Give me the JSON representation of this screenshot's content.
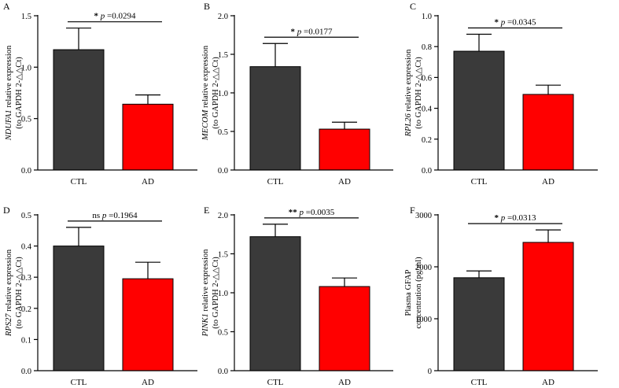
{
  "chart_data": [
    {
      "type": "bar",
      "panel": "A",
      "categories": [
        "CTL",
        "AD"
      ],
      "values": [
        1.17,
        0.64
      ],
      "errors": [
        0.21,
        0.09
      ],
      "colors": [
        "#3a3a3a",
        "#ff0000"
      ],
      "ylabel_gene": "NDUFA1",
      "ylabel_rest": " relative expression",
      "ylabel_line2": "(to GAPDH 2-△△Ct)",
      "ylim": [
        0,
        1.5
      ],
      "ticks": [
        0.0,
        0.5,
        1.0,
        1.5
      ],
      "tick_labels": [
        "0.0",
        "0.5",
        "1.0",
        "1.5"
      ],
      "sig_stars": "*",
      "sig_text": "p =0.0294"
    },
    {
      "type": "bar",
      "panel": "B",
      "categories": [
        "CTL",
        "AD"
      ],
      "values": [
        1.34,
        0.53
      ],
      "errors": [
        0.3,
        0.09
      ],
      "colors": [
        "#3a3a3a",
        "#ff0000"
      ],
      "ylabel_gene": "MECOM",
      "ylabel_rest": " relative expression",
      "ylabel_line2": "(to GAPDH 2-△△Ct)",
      "ylim": [
        0,
        2.0
      ],
      "ticks": [
        0.0,
        0.5,
        1.0,
        1.5,
        2.0
      ],
      "tick_labels": [
        "0.0",
        "0.5",
        "1.0",
        "1.5",
        "2.0"
      ],
      "sig_stars": "*",
      "sig_text": "p =0.0177"
    },
    {
      "type": "bar",
      "panel": "C",
      "categories": [
        "CTL",
        "AD"
      ],
      "values": [
        0.77,
        0.49
      ],
      "errors": [
        0.11,
        0.06
      ],
      "colors": [
        "#3a3a3a",
        "#ff0000"
      ],
      "ylabel_gene": "RPL26",
      "ylabel_rest": " relative expression",
      "ylabel_line2": "(to GAPDH 2-△△Ct)",
      "ylim": [
        0,
        1.0
      ],
      "ticks": [
        0.0,
        0.2,
        0.4,
        0.6,
        0.8,
        1.0
      ],
      "tick_labels": [
        "0.0",
        "0.2",
        "0.4",
        "0.6",
        "0.8",
        "1.0"
      ],
      "sig_stars": "*",
      "sig_text": "p =0.0345"
    },
    {
      "type": "bar",
      "panel": "D",
      "categories": [
        "CTL",
        "AD"
      ],
      "values": [
        0.4,
        0.295
      ],
      "errors": [
        0.06,
        0.053
      ],
      "colors": [
        "#3a3a3a",
        "#ff0000"
      ],
      "ylabel_gene": "RPS27",
      "ylabel_rest": " relative expression",
      "ylabel_line2": "(to GAPDH 2-△△Ct)",
      "ylim": [
        0,
        0.5
      ],
      "ticks": [
        0.0,
        0.1,
        0.2,
        0.3,
        0.4,
        0.5
      ],
      "tick_labels": [
        "0.0",
        "0.1",
        "0.2",
        "0.3",
        "0.4",
        "0.5"
      ],
      "sig_stars": "ns",
      "sig_text": "p =0.1964"
    },
    {
      "type": "bar",
      "panel": "E",
      "categories": [
        "CTL",
        "AD"
      ],
      "values": [
        1.72,
        1.08
      ],
      "errors": [
        0.16,
        0.11
      ],
      "colors": [
        "#3a3a3a",
        "#ff0000"
      ],
      "ylabel_gene": "PINK1",
      "ylabel_rest": " relative expression",
      "ylabel_line2": "(to GAPDH 2-△△Ct)",
      "ylim": [
        0,
        2.0
      ],
      "ticks": [
        0.0,
        0.5,
        1.0,
        1.5,
        2.0
      ],
      "tick_labels": [
        "0.0",
        "0.5",
        "1.0",
        "1.5",
        "2.0"
      ],
      "sig_stars": "**",
      "sig_text": "p =0.0035"
    },
    {
      "type": "bar",
      "panel": "F",
      "categories": [
        "CTL",
        "AD"
      ],
      "values": [
        1790,
        2470
      ],
      "errors": [
        130,
        240
      ],
      "colors": [
        "#3a3a3a",
        "#ff0000"
      ],
      "ylabel_gene": "",
      "ylabel_rest": "Plasma GFAP",
      "ylabel_line2": "concentration (pg/ml)",
      "ylim": [
        0,
        3000
      ],
      "ticks": [
        0,
        1000,
        2000,
        3000
      ],
      "tick_labels": [
        "0",
        "1000",
        "2000",
        "3000"
      ],
      "sig_stars": "*",
      "sig_text": "p =0.0313"
    }
  ]
}
